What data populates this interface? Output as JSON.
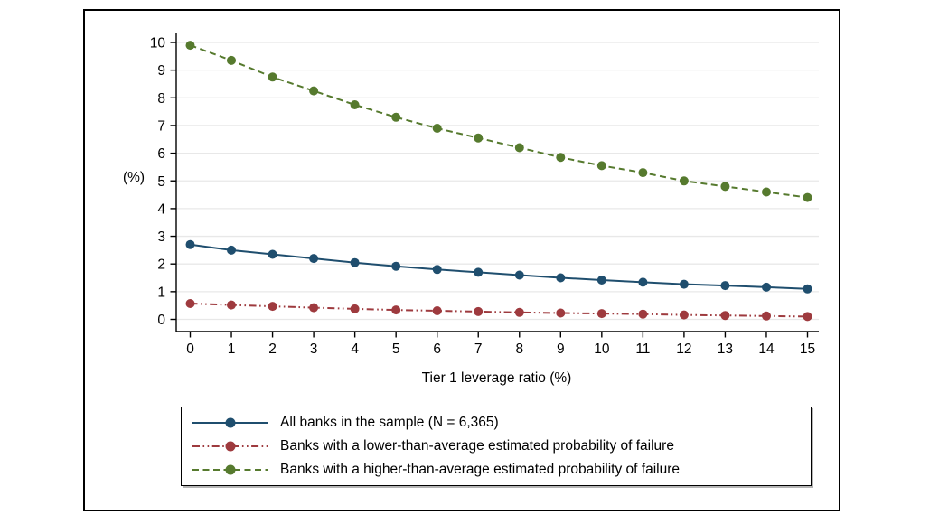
{
  "chart_data": {
    "type": "line",
    "title": "",
    "xlabel": "Tier 1 leverage ratio (%)",
    "ylabel": "(%)",
    "x": [
      0,
      1,
      2,
      3,
      4,
      5,
      6,
      7,
      8,
      9,
      10,
      11,
      12,
      13,
      14,
      15
    ],
    "xticks": [
      0,
      1,
      2,
      3,
      4,
      5,
      6,
      7,
      8,
      9,
      10,
      11,
      12,
      13,
      14,
      15
    ],
    "yticks": [
      0,
      1,
      2,
      3,
      4,
      5,
      6,
      7,
      8,
      9,
      10
    ],
    "xlim": [
      0,
      15
    ],
    "ylim": [
      0,
      10
    ],
    "grid": "horizontal gridlines only",
    "legend_position": "boxed legend below plot, left-aligned",
    "series": [
      {
        "name": "All banks in the sample (N = 6,365)",
        "color": "#1f4e6e",
        "line_style": "solid",
        "marker": "circle",
        "values": [
          2.7,
          2.5,
          2.35,
          2.2,
          2.05,
          1.92,
          1.8,
          1.7,
          1.6,
          1.5,
          1.42,
          1.34,
          1.27,
          1.22,
          1.16,
          1.1
        ]
      },
      {
        "name": "Banks with a lower-than-average estimated probability of failure",
        "color": "#9e3a3e",
        "line_style": "dash-dot-dot",
        "marker": "circle",
        "values": [
          0.57,
          0.52,
          0.47,
          0.42,
          0.38,
          0.34,
          0.31,
          0.28,
          0.25,
          0.23,
          0.21,
          0.19,
          0.16,
          0.14,
          0.12,
          0.1
        ]
      },
      {
        "name": "Banks with a higher-than-average estimated probability of failure",
        "color": "#567a2e",
        "line_style": "dashed",
        "marker": "circle",
        "values": [
          9.9,
          9.35,
          8.75,
          8.25,
          7.75,
          7.3,
          6.9,
          6.55,
          6.2,
          5.85,
          5.55,
          5.3,
          5.0,
          4.8,
          4.6,
          4.4
        ]
      }
    ]
  },
  "colors": {
    "grid": "#e8e8e8",
    "axis": "#000000",
    "figure_border": "#000000",
    "background": "#ffffff"
  }
}
